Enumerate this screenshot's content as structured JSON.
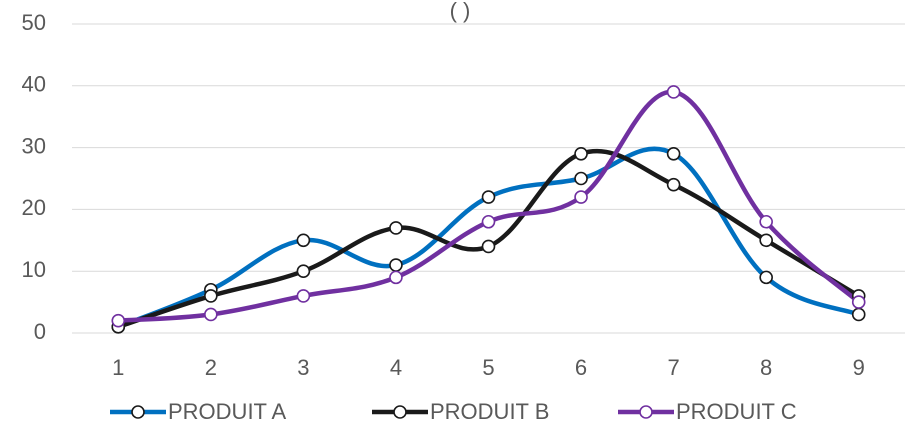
{
  "chart_data": {
    "type": "line",
    "title": "(         )",
    "x": [
      "1",
      "2",
      "3",
      "4",
      "5",
      "6",
      "7",
      "8",
      "9"
    ],
    "ylim": [
      0,
      50
    ],
    "yticks": [
      "0",
      "10",
      "20",
      "30",
      "40",
      "50"
    ],
    "grid": true,
    "smooth": true,
    "legend_position": "bottom",
    "series": [
      {
        "name": "PRODUIT A",
        "color": "#0070c0",
        "values": [
          1,
          7,
          15,
          11,
          22,
          25,
          29,
          9,
          3
        ]
      },
      {
        "name": "PRODUIT B",
        "color": "#1a1a1a",
        "values": [
          1,
          6,
          10,
          17,
          14,
          29,
          24,
          15,
          6
        ]
      },
      {
        "name": "PRODUIT C",
        "color": "#7030a0",
        "values": [
          2,
          3,
          6,
          9,
          18,
          22,
          39,
          18,
          5
        ]
      }
    ]
  }
}
